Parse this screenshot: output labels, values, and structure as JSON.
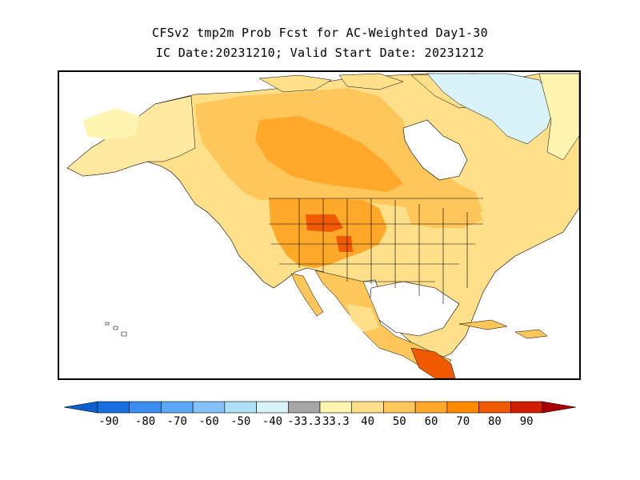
{
  "title": {
    "line1": "CFSv2 tmp2m Prob Fcst for AC-Weighted Day1-30",
    "line2": "IC Date:20231210; Valid Start Date: 20231212"
  },
  "map": {
    "region": "North America",
    "legend": {
      "bins": [
        {
          "label": "-90",
          "color": "#1a6fe0"
        },
        {
          "label": "-80",
          "color": "#3a8ef0"
        },
        {
          "label": "-70",
          "color": "#5aa8f5"
        },
        {
          "label": "-60",
          "color": "#84c2f8"
        },
        {
          "label": "-50",
          "color": "#aee0f6"
        },
        {
          "label": "-40",
          "color": "#d8f4f8"
        },
        {
          "label": "-33.3",
          "color": "#a6a6a6"
        },
        {
          "label": "33.3",
          "color": "#fff4b0"
        },
        {
          "label": "40",
          "color": "#ffe08a"
        },
        {
          "label": "50",
          "color": "#ffc65a"
        },
        {
          "label": "60",
          "color": "#ffa82a"
        },
        {
          "label": "70",
          "color": "#ff8a00"
        },
        {
          "label": "80",
          "color": "#f05a00"
        },
        {
          "label": "90",
          "color": "#d01e00"
        }
      ],
      "left_end_color": "#0d5fd0",
      "right_end_color": "#a80000"
    }
  }
}
